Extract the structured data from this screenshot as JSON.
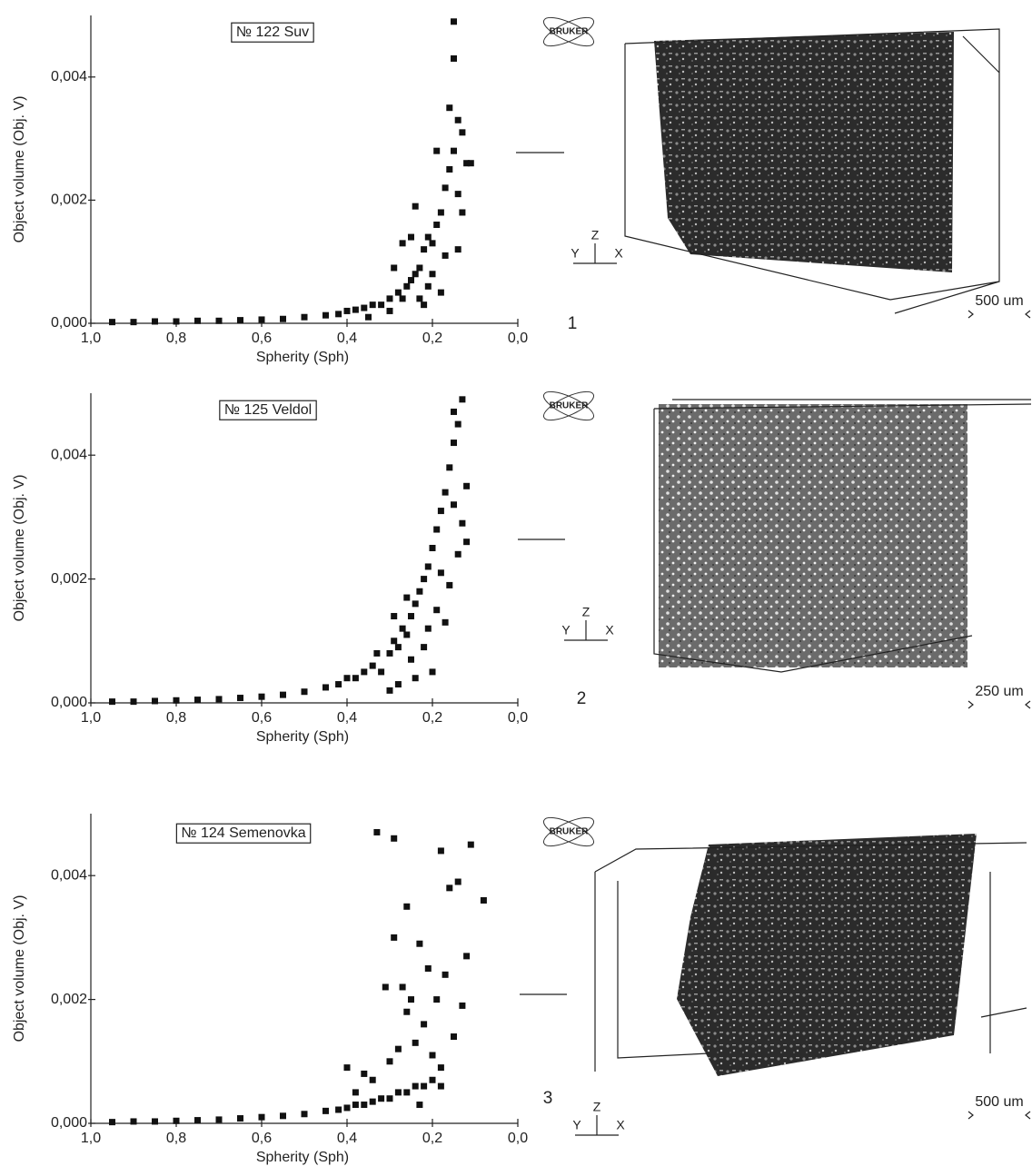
{
  "chart_data": [
    {
      "type": "scatter",
      "title": "№ 122 Suv",
      "xlabel": "Spherity (Sph)",
      "ylabel": "Object volume (Obj. V)",
      "xlim": [
        1.0,
        0.0
      ],
      "ylim": [
        0,
        0.005
      ],
      "xticks": [
        {
          "value": 1.0,
          "label": "1,0"
        },
        {
          "value": 0.8,
          "label": "0,8"
        },
        {
          "value": 0.6,
          "label": "0,6"
        },
        {
          "value": 0.4,
          "label": "0,4"
        },
        {
          "value": 0.2,
          "label": "0,2"
        },
        {
          "value": 0.0,
          "label": "0,0"
        }
      ],
      "yticks": [
        {
          "value": 0,
          "label": "0,000"
        },
        {
          "value": 0.002,
          "label": "0,002"
        },
        {
          "value": 0.004,
          "label": "0,004"
        }
      ],
      "color": "#111111",
      "x": [
        0.95,
        0.9,
        0.85,
        0.8,
        0.75,
        0.7,
        0.65,
        0.6,
        0.55,
        0.5,
        0.45,
        0.42,
        0.4,
        0.38,
        0.36,
        0.34,
        0.32,
        0.3,
        0.28,
        0.27,
        0.26,
        0.25,
        0.24,
        0.23,
        0.22,
        0.21,
        0.2,
        0.19,
        0.18,
        0.17,
        0.16,
        0.15,
        0.14,
        0.15,
        0.15,
        0.13,
        0.12,
        0.11,
        0.13,
        0.14,
        0.25,
        0.27,
        0.24,
        0.2,
        0.18,
        0.22,
        0.3,
        0.35,
        0.19,
        0.16,
        0.21,
        0.23,
        0.29,
        0.17,
        0.14
      ],
      "values": [
        2e-05,
        2e-05,
        3e-05,
        3e-05,
        4e-05,
        4e-05,
        5e-05,
        6e-05,
        7e-05,
        0.0001,
        0.00013,
        0.00015,
        0.0002,
        0.00022,
        0.00025,
        0.0003,
        0.0003,
        0.0004,
        0.0005,
        0.0004,
        0.0006,
        0.0007,
        0.0008,
        0.0009,
        0.0012,
        0.0014,
        0.0013,
        0.0016,
        0.0018,
        0.0022,
        0.0025,
        0.0028,
        0.0033,
        0.0043,
        0.0049,
        0.0031,
        0.0026,
        0.0026,
        0.0018,
        0.0012,
        0.0014,
        0.0013,
        0.0019,
        0.0008,
        0.0005,
        0.0003,
        0.0002,
        0.0001,
        0.0028,
        0.0035,
        0.0006,
        0.0004,
        0.0009,
        0.0011,
        0.0021
      ]
    },
    {
      "type": "scatter",
      "title": "№ 125 Veldol",
      "xlabel": "Spherity (Sph)",
      "ylabel": "Object volume (Obj. V)",
      "xlim": [
        1.0,
        0.0
      ],
      "ylim": [
        0,
        0.005
      ],
      "xticks": [
        {
          "value": 1.0,
          "label": "1,0"
        },
        {
          "value": 0.8,
          "label": "0,8"
        },
        {
          "value": 0.6,
          "label": "0,6"
        },
        {
          "value": 0.4,
          "label": "0,4"
        },
        {
          "value": 0.2,
          "label": "0,2"
        },
        {
          "value": 0.0,
          "label": "0,0"
        }
      ],
      "yticks": [
        {
          "value": 0,
          "label": "0,000"
        },
        {
          "value": 0.002,
          "label": "0,002"
        },
        {
          "value": 0.004,
          "label": "0,004"
        }
      ],
      "color": "#111111",
      "x": [
        0.95,
        0.9,
        0.85,
        0.8,
        0.75,
        0.7,
        0.65,
        0.6,
        0.55,
        0.5,
        0.45,
        0.42,
        0.4,
        0.38,
        0.36,
        0.34,
        0.32,
        0.3,
        0.29,
        0.28,
        0.27,
        0.26,
        0.25,
        0.24,
        0.23,
        0.22,
        0.21,
        0.2,
        0.19,
        0.18,
        0.17,
        0.16,
        0.15,
        0.14,
        0.13,
        0.12,
        0.15,
        0.14,
        0.16,
        0.19,
        0.22,
        0.25,
        0.28,
        0.3,
        0.2,
        0.17,
        0.13,
        0.26,
        0.33,
        0.24,
        0.21,
        0.18,
        0.15,
        0.12,
        0.29
      ],
      "values": [
        2e-05,
        2e-05,
        3e-05,
        4e-05,
        5e-05,
        6e-05,
        8e-05,
        0.0001,
        0.00013,
        0.00018,
        0.00025,
        0.0003,
        0.0004,
        0.0004,
        0.0005,
        0.0006,
        0.0005,
        0.0008,
        0.001,
        0.0009,
        0.0012,
        0.0011,
        0.0014,
        0.0016,
        0.0018,
        0.002,
        0.0022,
        0.0025,
        0.0028,
        0.0031,
        0.0034,
        0.0038,
        0.0042,
        0.0045,
        0.0049,
        0.0035,
        0.0047,
        0.0024,
        0.0019,
        0.0015,
        0.0009,
        0.0007,
        0.0003,
        0.0002,
        0.0005,
        0.0013,
        0.0029,
        0.0017,
        0.0008,
        0.0004,
        0.0012,
        0.0021,
        0.0032,
        0.0026,
        0.0014
      ]
    },
    {
      "type": "scatter",
      "title": "№ 124 Semenovka",
      "xlabel": "Spherity (Sph)",
      "ylabel": "Object volume (Obj. V)",
      "xlim": [
        1.0,
        0.0
      ],
      "ylim": [
        0,
        0.005
      ],
      "xticks": [
        {
          "value": 1.0,
          "label": "1,0"
        },
        {
          "value": 0.8,
          "label": "0,8"
        },
        {
          "value": 0.6,
          "label": "0,6"
        },
        {
          "value": 0.4,
          "label": "0,4"
        },
        {
          "value": 0.2,
          "label": "0,2"
        },
        {
          "value": 0.0,
          "label": "0,0"
        }
      ],
      "yticks": [
        {
          "value": 0,
          "label": "0,000"
        },
        {
          "value": 0.002,
          "label": "0,002"
        },
        {
          "value": 0.004,
          "label": "0,004"
        }
      ],
      "color": "#111111",
      "x": [
        0.95,
        0.9,
        0.85,
        0.8,
        0.75,
        0.7,
        0.65,
        0.6,
        0.55,
        0.5,
        0.45,
        0.42,
        0.4,
        0.38,
        0.36,
        0.34,
        0.32,
        0.3,
        0.28,
        0.26,
        0.24,
        0.22,
        0.2,
        0.18,
        0.33,
        0.29,
        0.18,
        0.11,
        0.16,
        0.14,
        0.08,
        0.26,
        0.12,
        0.29,
        0.23,
        0.21,
        0.17,
        0.31,
        0.27,
        0.25,
        0.19,
        0.13,
        0.36,
        0.4,
        0.22,
        0.15,
        0.24,
        0.28,
        0.3,
        0.2,
        0.34,
        0.26,
        0.18,
        0.23,
        0.38
      ],
      "values": [
        2e-05,
        3e-05,
        3e-05,
        4e-05,
        5e-05,
        6e-05,
        8e-05,
        0.0001,
        0.00012,
        0.00015,
        0.0002,
        0.00022,
        0.00025,
        0.0003,
        0.0003,
        0.00035,
        0.0004,
        0.0004,
        0.0005,
        0.0005,
        0.0006,
        0.0006,
        0.0007,
        0.0006,
        0.0047,
        0.0046,
        0.0044,
        0.0045,
        0.0038,
        0.0039,
        0.0036,
        0.0035,
        0.0027,
        0.003,
        0.0029,
        0.0025,
        0.0024,
        0.0022,
        0.0022,
        0.002,
        0.002,
        0.0019,
        0.0008,
        0.0009,
        0.0016,
        0.0014,
        0.0013,
        0.0012,
        0.001,
        0.0011,
        0.0007,
        0.0018,
        0.0009,
        0.0003,
        0.0005
      ]
    }
  ],
  "panels": [
    {
      "number": "1",
      "scale": "500 um",
      "logo": "BRUKER",
      "axes": [
        "Z",
        "Y",
        "X"
      ]
    },
    {
      "number": "2",
      "scale": "250 um",
      "logo": "BRUKER",
      "axes": [
        "Z",
        "Y",
        "X"
      ]
    },
    {
      "number": "3",
      "scale": "500 um",
      "logo": "BRUKER",
      "axes": [
        "Z",
        "Y",
        "X"
      ]
    }
  ]
}
